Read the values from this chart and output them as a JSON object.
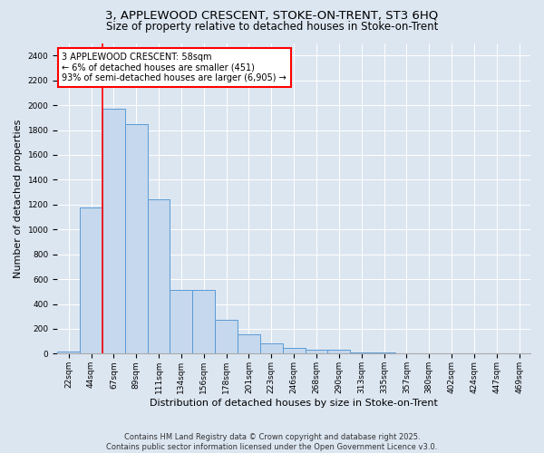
{
  "title": "3, APPLEWOOD CRESCENT, STOKE-ON-TRENT, ST3 6HQ",
  "subtitle": "Size of property relative to detached houses in Stoke-on-Trent",
  "xlabel": "Distribution of detached houses by size in Stoke-on-Trent",
  "ylabel": "Number of detached properties",
  "categories": [
    "22sqm",
    "44sqm",
    "67sqm",
    "89sqm",
    "111sqm",
    "134sqm",
    "156sqm",
    "178sqm",
    "201sqm",
    "223sqm",
    "246sqm",
    "268sqm",
    "290sqm",
    "313sqm",
    "335sqm",
    "357sqm",
    "380sqm",
    "402sqm",
    "424sqm",
    "447sqm",
    "469sqm"
  ],
  "values": [
    20,
    1175,
    1970,
    1850,
    1245,
    515,
    515,
    270,
    155,
    85,
    45,
    30,
    30,
    10,
    8,
    5,
    4,
    3,
    2,
    2,
    2
  ],
  "bar_color": "#c5d8ed",
  "bar_edge_color": "#5b9bd5",
  "vline_color": "red",
  "annotation_text": "3 APPLEWOOD CRESCENT: 58sqm\n← 6% of detached houses are smaller (451)\n93% of semi-detached houses are larger (6,905) →",
  "ylim": [
    0,
    2500
  ],
  "yticks": [
    0,
    200,
    400,
    600,
    800,
    1000,
    1200,
    1400,
    1600,
    1800,
    2000,
    2200,
    2400
  ],
  "footer": "Contains HM Land Registry data © Crown copyright and database right 2025.\nContains public sector information licensed under the Open Government Licence v3.0.",
  "bg_color": "#dce6f1",
  "plot_bg_color": "#dce6f1",
  "title_fontsize": 9.5,
  "subtitle_fontsize": 8.5,
  "axis_label_fontsize": 8,
  "tick_fontsize": 6.5,
  "footer_fontsize": 6,
  "annotation_fontsize": 7,
  "ylabel_fontsize": 8
}
